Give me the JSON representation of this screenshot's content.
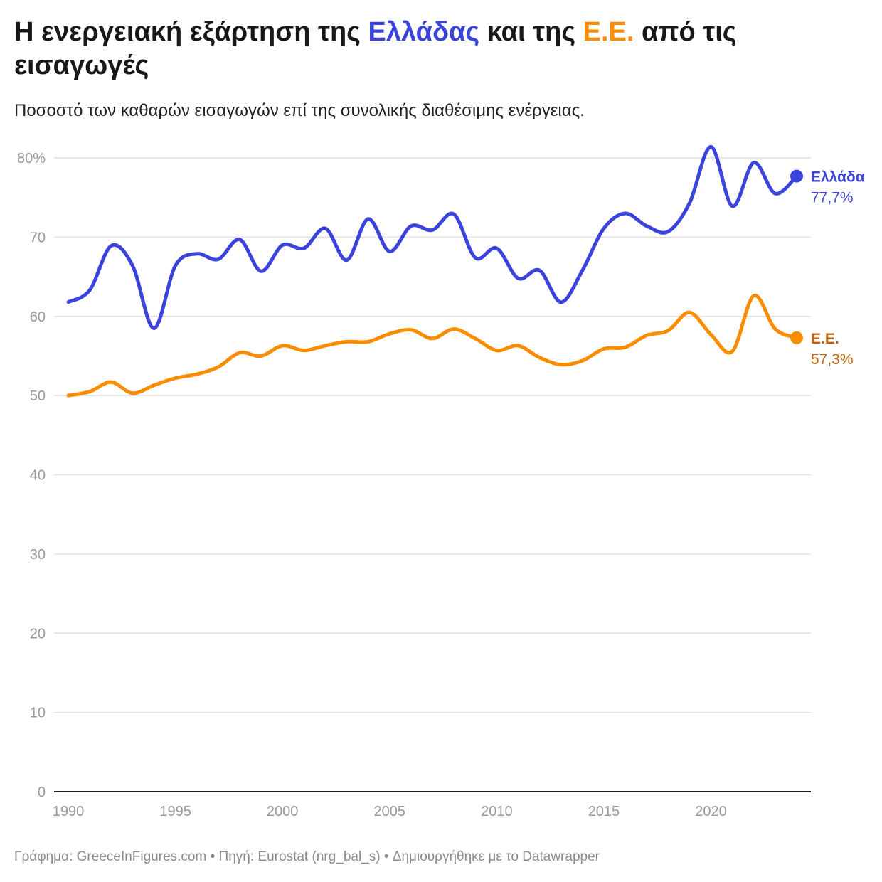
{
  "title": {
    "part1": "Η ενεργειακή εξάρτηση της ",
    "greece": "Ελλάδας",
    "part2": " και της ",
    "eu": "Ε.Ε.",
    "part3": " από τις εισαγωγές"
  },
  "subtitle": "Ποσοστό των καθαρών εισαγωγών επί της συνολικής διαθέσιμης ενέργειας.",
  "footer": "Γράφημα: GreeceInFigures.com • Πηγή: Eurostat (nrg_bal_s) • Δημιουργήθηκε με το Datawrapper",
  "colors": {
    "greece": "#3a44dd",
    "eu": "#fb8c00",
    "eu_label": "#c0620a",
    "grid": "#e0e0e0",
    "axis": "#222222"
  },
  "chart_data": {
    "type": "line",
    "x": [
      1990,
      1991,
      1992,
      1993,
      1994,
      1995,
      1996,
      1997,
      1998,
      1999,
      2000,
      2001,
      2002,
      2003,
      2004,
      2005,
      2006,
      2007,
      2008,
      2009,
      2010,
      2011,
      2012,
      2013,
      2014,
      2015,
      2016,
      2017,
      2018,
      2019,
      2020,
      2021,
      2022,
      2023,
      2024
    ],
    "xlim": [
      1990,
      2024
    ],
    "ylim": [
      0,
      80
    ],
    "x_ticks": [
      "1990",
      "1995",
      "2000",
      "2005",
      "2010",
      "2015",
      "2020"
    ],
    "y_ticks": [
      "0",
      "10",
      "20",
      "30",
      "40",
      "50",
      "60",
      "70",
      "80%"
    ],
    "grid": true,
    "series": [
      {
        "name": "Ελλάδα",
        "end_label": "77,7%",
        "values": [
          61.8,
          63.3,
          68.9,
          66.4,
          58.5,
          66.4,
          67.9,
          67.2,
          69.7,
          65.7,
          69.0,
          68.6,
          71.1,
          67.1,
          72.3,
          68.2,
          71.4,
          70.9,
          72.9,
          67.4,
          68.6,
          64.8,
          65.8,
          61.8,
          65.8,
          71.1,
          73.0,
          71.4,
          70.7,
          74.3,
          81.4,
          73.9,
          79.4,
          75.5,
          77.7
        ]
      },
      {
        "name": "Ε.Ε.",
        "end_label": "57,3%",
        "values": [
          50.0,
          50.5,
          51.7,
          50.3,
          51.3,
          52.2,
          52.7,
          53.6,
          55.4,
          55.0,
          56.3,
          55.7,
          56.3,
          56.8,
          56.8,
          57.8,
          58.3,
          57.2,
          58.4,
          57.2,
          55.7,
          56.3,
          54.8,
          53.9,
          54.4,
          55.9,
          56.1,
          57.6,
          58.2,
          60.5,
          57.7,
          55.6,
          62.6,
          58.4,
          57.3
        ]
      }
    ]
  }
}
